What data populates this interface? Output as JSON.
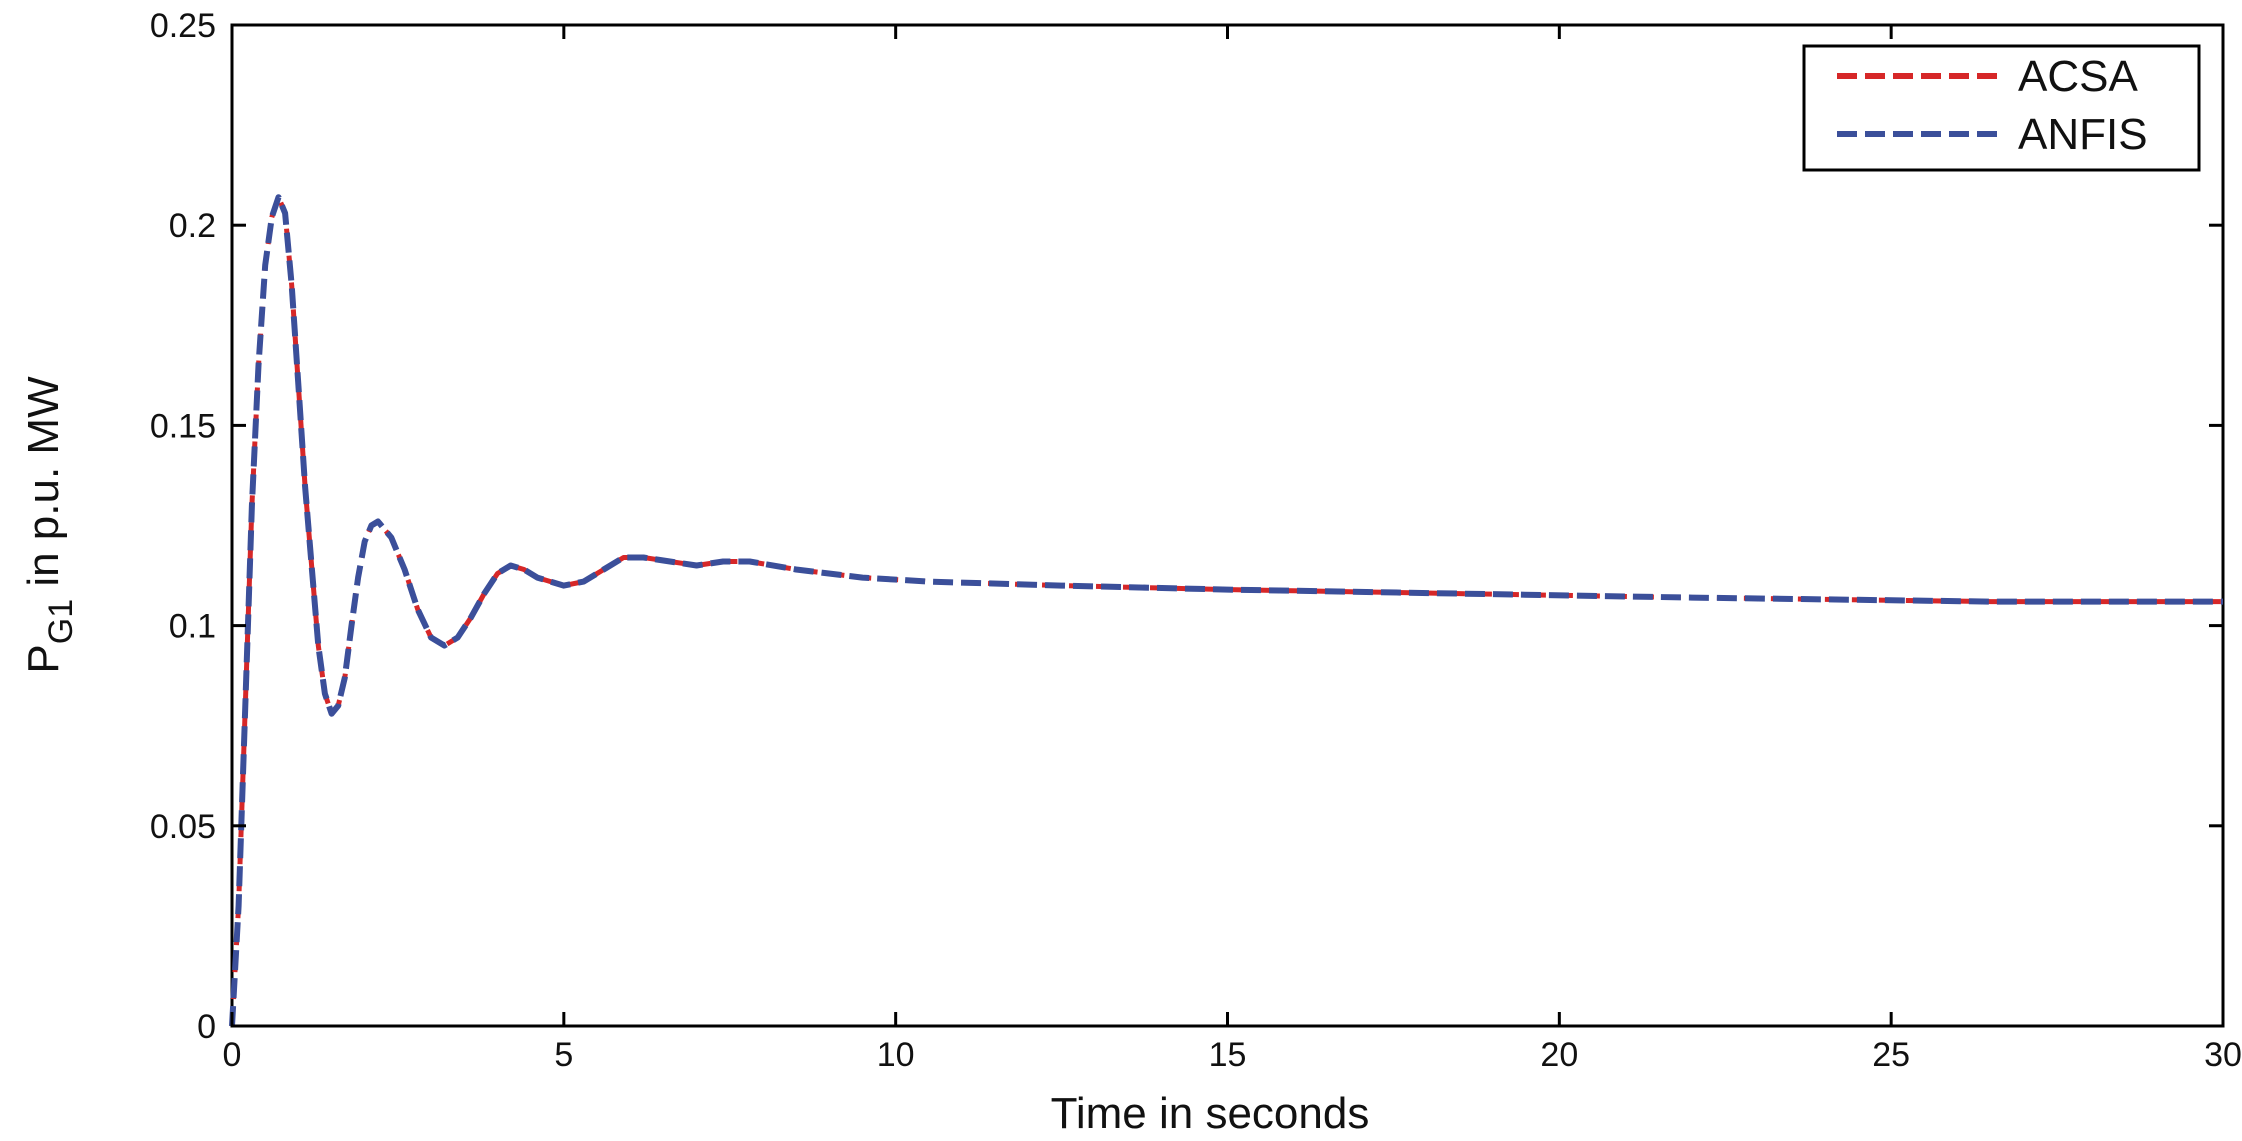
{
  "chart_data": {
    "type": "line",
    "xlabel": "Time in seconds",
    "ylabel": {
      "main": "P",
      "subscript": "G1",
      "rest": " in p.u. MW"
    },
    "xlim": [
      0,
      30
    ],
    "ylim": [
      0,
      0.25
    ],
    "xticks": [
      0,
      5,
      10,
      15,
      20,
      25,
      30
    ],
    "xtick_labels": [
      "0",
      "5",
      "10",
      "15",
      "20",
      "25",
      "30"
    ],
    "yticks": [
      0,
      0.05,
      0.1,
      0.15,
      0.2,
      0.25
    ],
    "ytick_labels": [
      "0",
      "0.05",
      "0.1",
      "0.15",
      "0.2",
      "0.25"
    ],
    "grid": false,
    "legend_position": "top-right",
    "series": [
      {
        "name": "ACSA",
        "color": "#d62728",
        "style": "dashed",
        "x": [
          0,
          0.1,
          0.2,
          0.3,
          0.4,
          0.5,
          0.6,
          0.7,
          0.8,
          0.9,
          1.0,
          1.1,
          1.2,
          1.3,
          1.4,
          1.5,
          1.6,
          1.7,
          1.8,
          1.9,
          2.0,
          2.1,
          2.2,
          2.3,
          2.4,
          2.5,
          2.6,
          2.8,
          3.0,
          3.2,
          3.4,
          3.6,
          3.8,
          4.0,
          4.2,
          4.4,
          4.6,
          4.8,
          5.0,
          5.3,
          5.6,
          5.9,
          6.2,
          6.6,
          7.0,
          7.4,
          7.8,
          8.5,
          9.5,
          10.5,
          12.5,
          15,
          18.5,
          22,
          26.5,
          30
        ],
        "y": [
          0,
          0.03,
          0.08,
          0.13,
          0.165,
          0.19,
          0.202,
          0.207,
          0.203,
          0.185,
          0.16,
          0.135,
          0.115,
          0.095,
          0.083,
          0.078,
          0.08,
          0.087,
          0.1,
          0.112,
          0.121,
          0.125,
          0.126,
          0.124,
          0.122,
          0.118,
          0.114,
          0.104,
          0.097,
          0.095,
          0.097,
          0.102,
          0.108,
          0.113,
          0.115,
          0.114,
          0.112,
          0.111,
          0.11,
          0.111,
          0.114,
          0.117,
          0.117,
          0.116,
          0.115,
          0.116,
          0.116,
          0.114,
          0.112,
          0.111,
          0.11,
          0.109,
          0.108,
          0.107,
          0.106,
          0.106
        ]
      },
      {
        "name": "ANFIS",
        "color": "#3b4f9a",
        "style": "dashed",
        "x": [
          0,
          0.1,
          0.2,
          0.3,
          0.4,
          0.5,
          0.6,
          0.7,
          0.8,
          0.9,
          1.0,
          1.1,
          1.2,
          1.3,
          1.4,
          1.5,
          1.6,
          1.7,
          1.8,
          1.9,
          2.0,
          2.1,
          2.2,
          2.3,
          2.4,
          2.5,
          2.6,
          2.8,
          3.0,
          3.2,
          3.4,
          3.6,
          3.8,
          4.0,
          4.2,
          4.4,
          4.6,
          4.8,
          5.0,
          5.3,
          5.6,
          5.9,
          6.2,
          6.6,
          7.0,
          7.4,
          7.8,
          8.5,
          9.5,
          10.5,
          12.5,
          15,
          18.5,
          22,
          26.5,
          30
        ],
        "y": [
          0,
          0.03,
          0.08,
          0.13,
          0.165,
          0.19,
          0.202,
          0.207,
          0.203,
          0.185,
          0.16,
          0.135,
          0.115,
          0.095,
          0.083,
          0.078,
          0.08,
          0.087,
          0.1,
          0.112,
          0.121,
          0.125,
          0.126,
          0.124,
          0.122,
          0.118,
          0.114,
          0.104,
          0.097,
          0.095,
          0.097,
          0.102,
          0.108,
          0.113,
          0.115,
          0.114,
          0.112,
          0.111,
          0.11,
          0.111,
          0.114,
          0.117,
          0.117,
          0.116,
          0.115,
          0.116,
          0.116,
          0.114,
          0.112,
          0.111,
          0.11,
          0.109,
          0.108,
          0.107,
          0.106,
          0.106
        ]
      }
    ]
  }
}
